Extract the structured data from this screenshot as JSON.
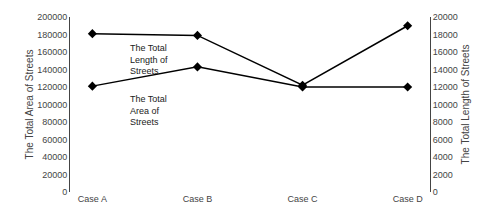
{
  "chart_data": {
    "type": "line",
    "categories": [
      "Case A",
      "Case B",
      "Case C",
      "Case D"
    ],
    "series": [
      {
        "values": [
          121000,
          143000,
          120000,
          120000
        ],
        "color": "#000000",
        "marker": "diamond",
        "line_style": "solid",
        "axis": "y"
      },
      {
        "values": [
          18100,
          17900,
          12200,
          19000
        ],
        "color": "#000000",
        "marker": "diamond",
        "line_style": "solid",
        "axis": "y2"
      }
    ],
    "ylabel": "The Total Area of Streets",
    "y2label": "The Total Length of Streets",
    "ylim": [
      0,
      200000
    ],
    "yticks": [
      0,
      20000,
      40000,
      60000,
      80000,
      100000,
      120000,
      140000,
      160000,
      180000,
      200000
    ],
    "y2lim": [
      0,
      20000
    ],
    "y2ticks": [
      0,
      2000,
      4000,
      6000,
      8000,
      10000,
      12000,
      14000,
      16000,
      18000,
      20000
    ],
    "annotations": [
      {
        "text": "The Total\nLength of\nStreets"
      },
      {
        "text": "The Total\nArea of\nStreets"
      }
    ],
    "grid": false
  }
}
